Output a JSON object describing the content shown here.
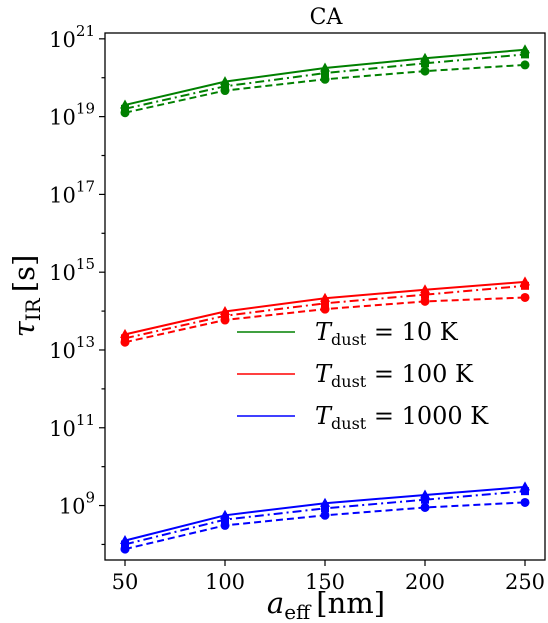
{
  "chart_data": {
    "type": "line",
    "title": "CA",
    "xlabel": {
      "main": "a",
      "sub": "eff",
      "unit": "[nm]"
    },
    "ylabel": {
      "main": "τ",
      "sub": "IR",
      "unit": "[s]"
    },
    "x": [
      50,
      100,
      150,
      200,
      250
    ],
    "xlim": [
      40,
      260
    ],
    "xticks": [
      "50",
      "100",
      "150",
      "200",
      "250"
    ],
    "yscale": "log",
    "ylim_exp": [
      7.6,
      21.15
    ],
    "yticks": [
      {
        "base": "10",
        "exp": "9",
        "exp_value": 9
      },
      {
        "base": "10",
        "exp": "11",
        "exp_value": 11
      },
      {
        "base": "10",
        "exp": "13",
        "exp_value": 13
      },
      {
        "base": "10",
        "exp": "15",
        "exp_value": 15
      },
      {
        "base": "10",
        "exp": "17",
        "exp_value": 17
      },
      {
        "base": "10",
        "exp": "19",
        "exp_value": 19
      },
      {
        "base": "10",
        "exp": "21",
        "exp_value": 21
      }
    ],
    "grid": false,
    "legend_position": "center-right",
    "legend": [
      {
        "prefix": "T",
        "sub": "dust",
        "text": " = 10 K",
        "color": "#008000"
      },
      {
        "prefix": "T",
        "sub": "dust",
        "text": " = 100 K",
        "color": "#ff0000"
      },
      {
        "prefix": "T",
        "sub": "dust",
        "text": " = 1000 K",
        "color": "#0000ff"
      }
    ],
    "groups": [
      {
        "color": "#008000",
        "series": [
          {
            "style": "solid",
            "marker": "triangle",
            "log10_values": [
              19.3,
              19.9,
              20.25,
              20.5,
              20.72
            ]
          },
          {
            "style": "dashdot",
            "marker": "square",
            "log10_values": [
              19.2,
              19.78,
              20.12,
              20.37,
              20.6
            ]
          },
          {
            "style": "dashed",
            "marker": "circle",
            "log10_values": [
              19.1,
              19.67,
              19.96,
              20.17,
              20.33
            ]
          }
        ]
      },
      {
        "color": "#ff0000",
        "series": [
          {
            "style": "solid",
            "marker": "triangle",
            "log10_values": [
              13.4,
              13.99,
              14.33,
              14.55,
              14.75
            ]
          },
          {
            "style": "dashdot",
            "marker": "square",
            "log10_values": [
              13.3,
              13.88,
              14.2,
              14.42,
              14.65
            ]
          },
          {
            "style": "dashed",
            "marker": "circle",
            "log10_values": [
              13.2,
              13.77,
              14.05,
              14.25,
              14.35
            ]
          }
        ]
      },
      {
        "color": "#0000ff",
        "series": [
          {
            "style": "solid",
            "marker": "triangle",
            "log10_values": [
              8.1,
              8.75,
              9.06,
              9.27,
              9.48
            ]
          },
          {
            "style": "dashdot",
            "marker": "square",
            "log10_values": [
              8.0,
              8.64,
              8.93,
              9.15,
              9.37
            ]
          },
          {
            "style": "dashed",
            "marker": "circle",
            "log10_values": [
              7.88,
              8.49,
              8.75,
              8.95,
              9.08
            ]
          }
        ]
      }
    ]
  }
}
